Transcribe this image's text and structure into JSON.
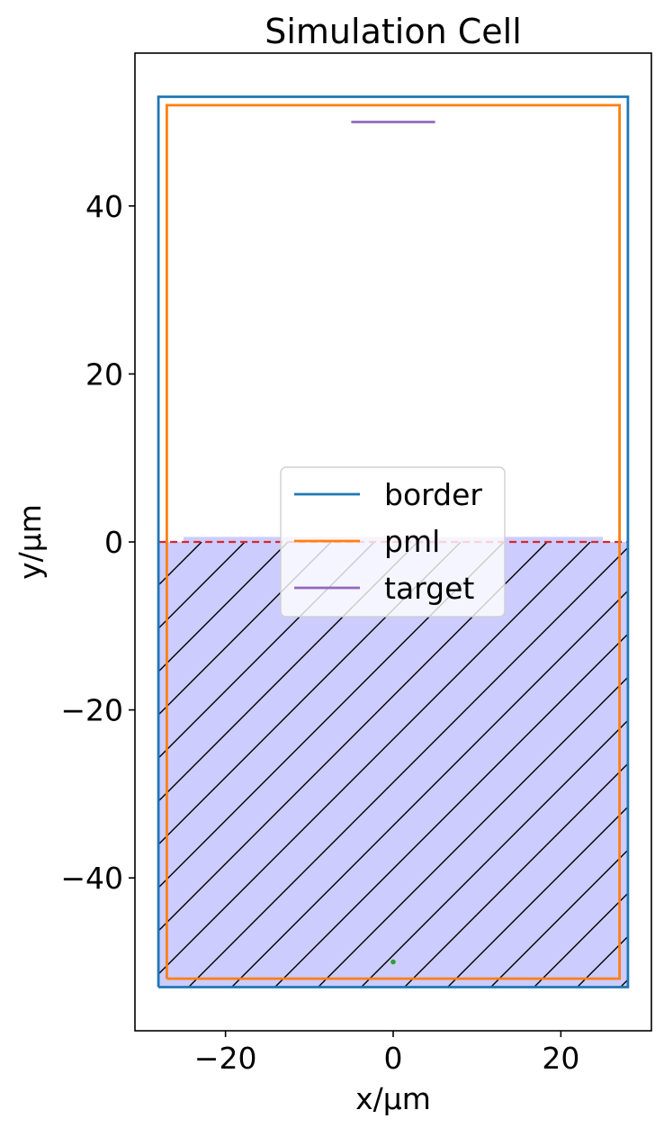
{
  "chart_data": {
    "type": "line",
    "title": "Simulation Cell",
    "xlabel": "x/μm",
    "ylabel": "y/μm",
    "xlim": [
      -30.8,
      30.8
    ],
    "ylim": [
      -58.2,
      58.2
    ],
    "xticks": [
      -20,
      0,
      20
    ],
    "yticks": [
      -40,
      -20,
      0,
      20,
      40
    ],
    "xtick_labels": [
      "−20",
      "0",
      "20"
    ],
    "ytick_labels": [
      "−40",
      "−20",
      "0",
      "20",
      "40"
    ],
    "grid": false,
    "legend_position": "center",
    "series": [
      {
        "name": "border",
        "color": "#1f77b4",
        "x": [
          -28,
          28,
          28,
          -28,
          -28
        ],
        "y": [
          -53,
          -53,
          53,
          53,
          -53
        ]
      },
      {
        "name": "pml",
        "color": "#ff7f0e",
        "x": [
          -27,
          27,
          27,
          -27,
          -27
        ],
        "y": [
          -52,
          -52,
          52,
          52,
          -52
        ]
      },
      {
        "name": "target",
        "color": "#9467bd",
        "x": [
          -5,
          5
        ],
        "y": [
          50,
          50
        ]
      }
    ],
    "substrate": {
      "color": "#ccccff",
      "hatch": "diagonal",
      "x_range": [
        -28,
        28
      ],
      "y_range": [
        -53,
        0
      ],
      "top_strip": {
        "x_range": [
          -25,
          25
        ],
        "y_range": [
          0,
          0.6
        ]
      }
    },
    "interface_line": {
      "y": 0,
      "x_range": [
        -28,
        28
      ],
      "color": "#d62728",
      "style": "dashed"
    },
    "source_point": {
      "x": 0,
      "y": -50,
      "color": "#2ca02c"
    }
  }
}
